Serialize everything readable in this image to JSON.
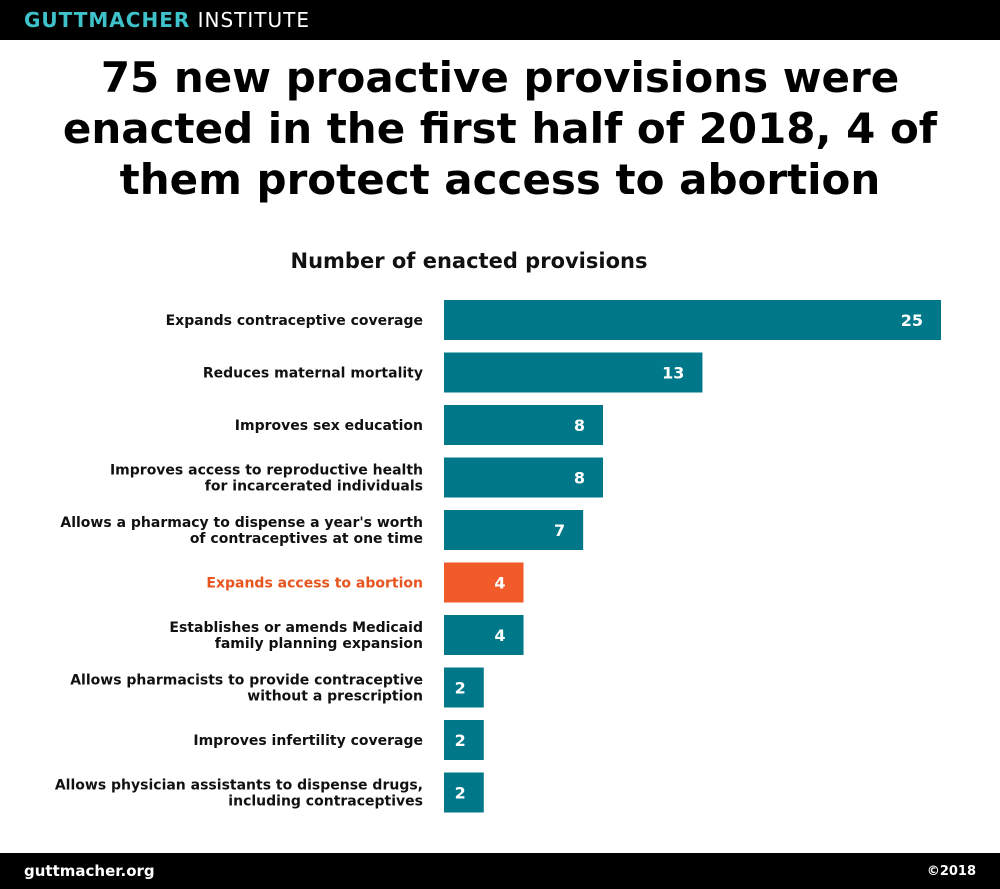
{
  "header": {
    "brand_primary": "GUTTMACHER",
    "brand_secondary": "INSTITUTE"
  },
  "footer": {
    "site": "guttmacher.org",
    "copyright": "©2018"
  },
  "colors": {
    "bar": "#00788a",
    "highlight": "#f15a29",
    "highlight_text": "#e8541e",
    "bar_text": "#ffffff"
  },
  "chart_data": {
    "type": "bar",
    "orientation": "horizontal",
    "title": "75 new proactive provisions were enacted in the first half of 2018, 4 of them protect access to abortion",
    "subtitle": "Number of enacted provisions",
    "categories": [
      [
        "Expands contraceptive coverage"
      ],
      [
        "Reduces maternal mortality"
      ],
      [
        "Improves sex education"
      ],
      [
        "Improves access to reproductive health",
        "for incarcerated individuals"
      ],
      [
        "Allows a pharmacy to dispense a year's worth",
        "of contraceptives at one time"
      ],
      [
        "Expands access to abortion"
      ],
      [
        "Establishes or amends Medicaid",
        "family planning expansion"
      ],
      [
        "Allows pharmacists to provide contraceptive",
        "without a prescription"
      ],
      [
        "Improves infertility coverage"
      ],
      [
        "Allows physician assistants to dispense drugs,",
        "including contraceptives"
      ]
    ],
    "values": [
      25,
      13,
      8,
      8,
      7,
      4,
      4,
      2,
      2,
      2
    ],
    "highlight_index": 5,
    "xlim": [
      0,
      25
    ],
    "grid": false,
    "legend": false
  }
}
